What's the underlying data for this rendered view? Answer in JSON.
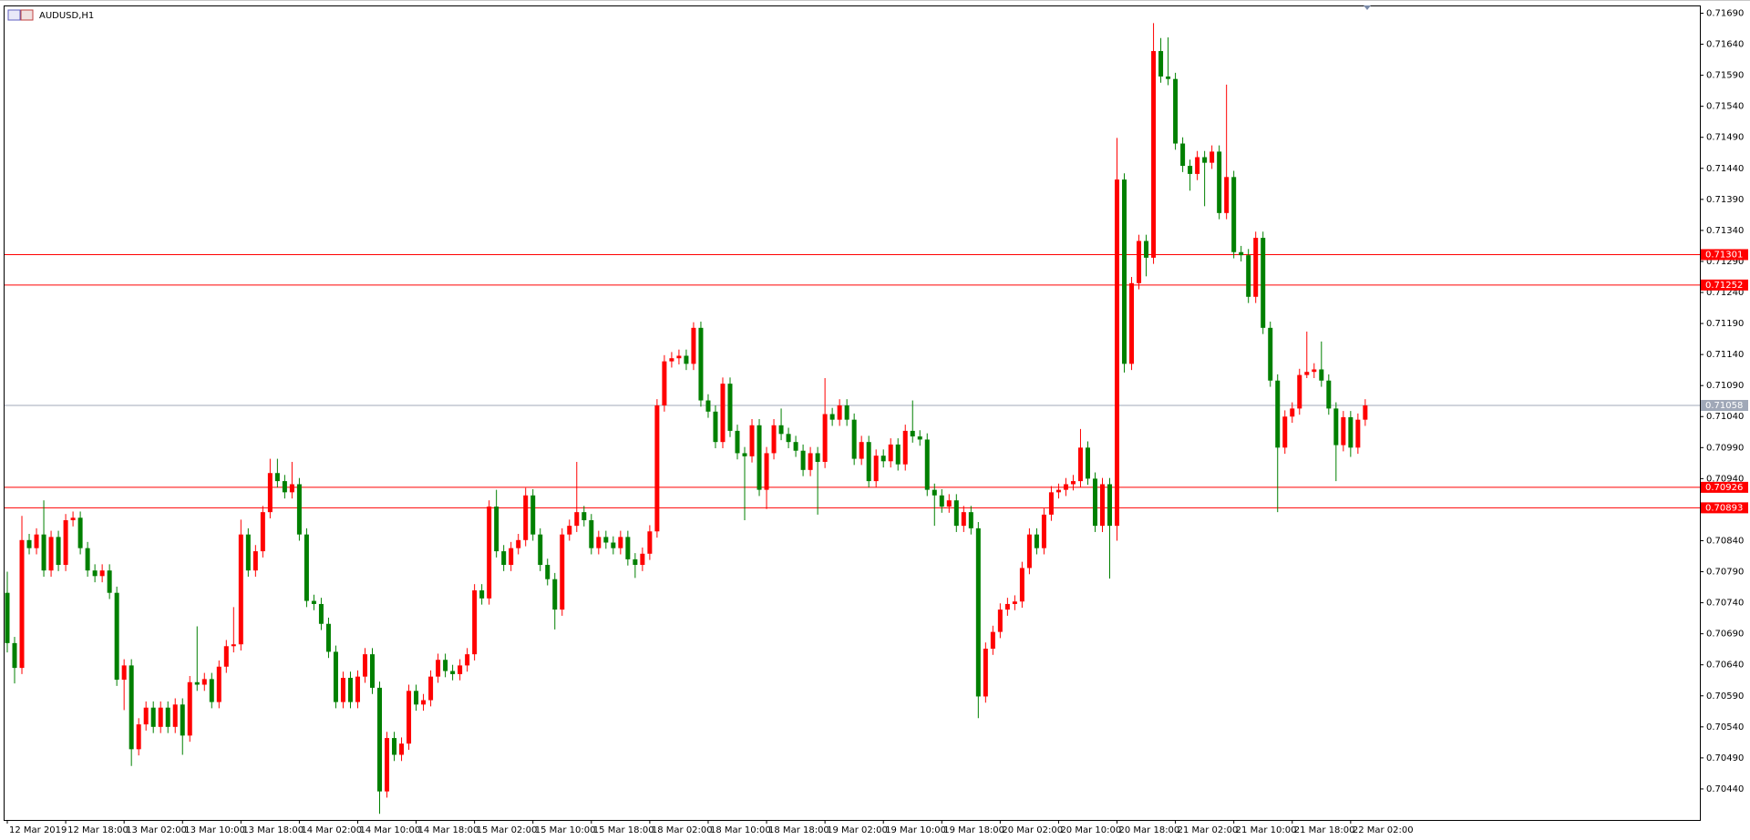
{
  "chart_data": {
    "type": "candlestick",
    "title": "AUDUSD,H1",
    "up_color": "#ff0000",
    "down_color": "#008000",
    "grid": false,
    "ylim": [
      0.7039,
      0.71701
    ],
    "yticks": [
      {
        "value": 0.7044,
        "label": "0.70440"
      },
      {
        "value": 0.7049,
        "label": "0.70490"
      },
      {
        "value": 0.7054,
        "label": "0.70540"
      },
      {
        "value": 0.7059,
        "label": "0.70590"
      },
      {
        "value": 0.7064,
        "label": "0.70640"
      },
      {
        "value": 0.7069,
        "label": "0.70690"
      },
      {
        "value": 0.7074,
        "label": "0.70740"
      },
      {
        "value": 0.7079,
        "label": "0.70790"
      },
      {
        "value": 0.7084,
        "label": "0.70840"
      },
      {
        "value": 0.7089,
        "label": "0.70890"
      },
      {
        "value": 0.7094,
        "label": "0.70940"
      },
      {
        "value": 0.7099,
        "label": "0.70990"
      },
      {
        "value": 0.7104,
        "label": "0.71040"
      },
      {
        "value": 0.7109,
        "label": "0.71090"
      },
      {
        "value": 0.7114,
        "label": "0.71140"
      },
      {
        "value": 0.7119,
        "label": "0.71190"
      },
      {
        "value": 0.7124,
        "label": "0.71240"
      },
      {
        "value": 0.7129,
        "label": "0.71290"
      },
      {
        "value": 0.7134,
        "label": "0.71340"
      },
      {
        "value": 0.7139,
        "label": "0.71390"
      },
      {
        "value": 0.7144,
        "label": "0.71440"
      },
      {
        "value": 0.7149,
        "label": "0.71490"
      },
      {
        "value": 0.7154,
        "label": "0.71540"
      },
      {
        "value": 0.7159,
        "label": "0.71590"
      },
      {
        "value": 0.7164,
        "label": "0.71640"
      },
      {
        "value": 0.7169,
        "label": "0.71690"
      }
    ],
    "hlines": [
      0.71301,
      0.71252,
      0.70926,
      0.70893
    ],
    "hline_color": "#ff0000",
    "current_price": 0.71058,
    "current_price_color": "#a0a8b8",
    "categories": [
      "12 Mar 2019",
      null,
      null,
      null,
      null,
      null,
      null,
      null,
      "12 Mar 18:00",
      null,
      null,
      null,
      null,
      null,
      null,
      null,
      "13 Mar 02:00",
      null,
      null,
      null,
      null,
      null,
      null,
      null,
      "13 Mar 10:00",
      null,
      null,
      null,
      null,
      null,
      null,
      null,
      "13 Mar 18:00",
      null,
      null,
      null,
      null,
      null,
      null,
      null,
      "14 Mar 02:00",
      null,
      null,
      null,
      null,
      null,
      null,
      null,
      "14 Mar 10:00",
      null,
      null,
      null,
      null,
      null,
      null,
      null,
      "14 Mar 18:00",
      null,
      null,
      null,
      null,
      null,
      null,
      null,
      "15 Mar 02:00",
      null,
      null,
      null,
      null,
      null,
      null,
      null,
      "15 Mar 10:00",
      null,
      null,
      null,
      null,
      null,
      null,
      null,
      "15 Mar 18:00",
      null,
      null,
      null,
      null,
      null,
      null,
      null,
      "18 Mar 02:00",
      null,
      null,
      null,
      null,
      null,
      null,
      null,
      "18 Mar 10:00",
      null,
      null,
      null,
      null,
      null,
      null,
      null,
      "18 Mar 18:00",
      null,
      null,
      null,
      null,
      null,
      null,
      null,
      "19 Mar 02:00",
      null,
      null,
      null,
      null,
      null,
      null,
      null,
      "19 Mar 10:00",
      null,
      null,
      null,
      null,
      null,
      null,
      null,
      "19 Mar 18:00",
      null,
      null,
      null,
      null,
      null,
      null,
      null,
      "20 Mar 02:00",
      null,
      null,
      null,
      null,
      null,
      null,
      null,
      "20 Mar 10:00",
      null,
      null,
      null,
      null,
      null,
      null,
      null,
      "20 Mar 18:00",
      null,
      null,
      null,
      null,
      null,
      null,
      null,
      "21 Mar 02:00",
      null,
      null,
      null,
      null,
      null,
      null,
      null,
      "21 Mar 10:00",
      null,
      null,
      null,
      null,
      null,
      null,
      null,
      "21 Mar 18:00",
      null,
      null,
      null,
      null,
      null,
      null,
      null,
      "22 Mar 02:00",
      null,
      null
    ],
    "open": [
      0.70756,
      0.70675,
      0.70635,
      0.70841,
      0.70828,
      0.7085,
      0.70792,
      0.70846,
      0.70801,
      0.70873,
      0.70877,
      0.70828,
      0.70792,
      0.70783,
      0.70792,
      0.70756,
      0.70616,
      0.70639,
      0.70504,
      0.70544,
      0.70571,
      0.7054,
      0.70571,
      0.7054,
      0.70576,
      0.70526,
      0.70612,
      0.70608,
      0.70617,
      0.7058,
      0.70637,
      0.7067,
      0.70673,
      0.7085,
      0.70792,
      0.70823,
      0.70886,
      0.70949,
      0.70936,
      0.70918,
      0.70931,
      0.7085,
      0.70743,
      0.70738,
      0.70706,
      0.70661,
      0.7058,
      0.70619,
      0.7058,
      0.70621,
      0.70657,
      0.70603,
      0.70436,
      0.70522,
      0.70495,
      0.70513,
      0.70598,
      0.70576,
      0.70583,
      0.70621,
      0.70648,
      0.7063,
      0.70625,
      0.70639,
      0.70657,
      0.7076,
      0.70747,
      0.70895,
      0.70823,
      0.70801,
      0.70828,
      0.70841,
      0.70913,
      0.7085,
      0.70801,
      0.70778,
      0.70729,
      0.7085,
      0.70864,
      0.70886,
      0.70873,
      0.70828,
      0.70846,
      0.70837,
      0.70828,
      0.70846,
      0.7081,
      0.70801,
      0.70819,
      0.70855,
      0.71058,
      0.71129,
      0.71134,
      0.71138,
      0.71125,
      0.71183,
      0.71066,
      0.71048,
      0.70999,
      0.71093,
      0.71017,
      0.70981,
      0.70976,
      0.71026,
      0.70922,
      0.70981,
      0.71026,
      0.71012,
      0.70999,
      0.70985,
      0.70954,
      0.70981,
      0.70967,
      0.71044,
      0.71035,
      0.71058,
      0.71035,
      0.70972,
      0.70999,
      0.70936,
      0.70977,
      0.70968,
      0.70995,
      0.70963,
      0.71017,
      0.71008,
      0.71003,
      0.70922,
      0.70913,
      0.70895,
      0.70905,
      0.70864,
      0.70886,
      0.7086,
      0.70589,
      0.70666,
      0.70693,
      0.70729,
      0.70738,
      0.70742,
      0.70796,
      0.7085,
      0.70828,
      0.70882,
      0.70918,
      0.70922,
      0.70931,
      0.70936,
      0.7099,
      0.7094,
      0.70864,
      0.70931,
      0.70864,
      0.71422,
      0.71125,
      0.71255,
      0.71323,
      0.71296,
      0.71629,
      0.71588,
      0.71584,
      0.7148,
      0.71444,
      0.71431,
      0.71458,
      0.71449,
      0.71467,
      0.71368,
      0.71426,
      0.71305,
      0.713,
      0.71233,
      0.71328,
      0.71183,
      0.71098,
      0.7099,
      0.7104,
      0.71053,
      0.71107,
      0.71112,
      0.71116,
      0.71098,
      0.71053,
      0.70994,
      0.71039,
      0.7099,
      0.71035
    ],
    "close": [
      0.70675,
      0.70635,
      0.70841,
      0.70828,
      0.7085,
      0.70792,
      0.70846,
      0.70801,
      0.70873,
      0.70877,
      0.70828,
      0.70792,
      0.70783,
      0.70792,
      0.70756,
      0.70616,
      0.70639,
      0.70504,
      0.70544,
      0.70571,
      0.7054,
      0.70571,
      0.7054,
      0.70576,
      0.70526,
      0.70612,
      0.70608,
      0.70617,
      0.7058,
      0.70637,
      0.7067,
      0.70673,
      0.7085,
      0.70792,
      0.70823,
      0.70886,
      0.70949,
      0.70936,
      0.70918,
      0.70931,
      0.7085,
      0.70743,
      0.70738,
      0.70706,
      0.70661,
      0.7058,
      0.70619,
      0.7058,
      0.70621,
      0.70657,
      0.70603,
      0.70436,
      0.70522,
      0.70495,
      0.70513,
      0.70598,
      0.70576,
      0.70583,
      0.70621,
      0.70648,
      0.7063,
      0.70625,
      0.70639,
      0.70657,
      0.7076,
      0.70747,
      0.70895,
      0.70823,
      0.70801,
      0.70828,
      0.70841,
      0.70913,
      0.7085,
      0.70801,
      0.70778,
      0.70729,
      0.7085,
      0.70864,
      0.70886,
      0.70873,
      0.70828,
      0.70846,
      0.70837,
      0.70828,
      0.70846,
      0.7081,
      0.70801,
      0.70819,
      0.70855,
      0.71058,
      0.71129,
      0.71134,
      0.71138,
      0.71125,
      0.71183,
      0.71066,
      0.71048,
      0.70999,
      0.71093,
      0.71017,
      0.70981,
      0.70976,
      0.71026,
      0.70922,
      0.70981,
      0.71026,
      0.71012,
      0.70999,
      0.70985,
      0.70954,
      0.70981,
      0.70967,
      0.71044,
      0.71035,
      0.71058,
      0.71035,
      0.70972,
      0.70999,
      0.70936,
      0.70977,
      0.70968,
      0.70995,
      0.70963,
      0.71017,
      0.71008,
      0.71003,
      0.70922,
      0.70913,
      0.70895,
      0.70905,
      0.70864,
      0.70886,
      0.7086,
      0.70589,
      0.70666,
      0.70693,
      0.70729,
      0.70738,
      0.70742,
      0.70796,
      0.7085,
      0.70828,
      0.70882,
      0.70918,
      0.70922,
      0.70931,
      0.70936,
      0.7099,
      0.7094,
      0.70864,
      0.70931,
      0.70864,
      0.71422,
      0.71125,
      0.71255,
      0.71323,
      0.71296,
      0.71629,
      0.71588,
      0.71584,
      0.7148,
      0.71444,
      0.71431,
      0.71458,
      0.71449,
      0.71467,
      0.71368,
      0.71426,
      0.71305,
      0.713,
      0.71233,
      0.71328,
      0.71183,
      0.71098,
      0.7099,
      0.7104,
      0.71053,
      0.71107,
      0.71112,
      0.71116,
      0.71098,
      0.71053,
      0.70994,
      0.71039,
      0.7099,
      0.71035,
      0.71058
    ],
    "high": [
      0.7079,
      0.70685,
      0.7088,
      0.70851,
      0.7086,
      0.70905,
      0.70856,
      0.70856,
      0.70883,
      0.70887,
      0.70887,
      0.70838,
      0.70802,
      0.70802,
      0.70802,
      0.70766,
      0.70649,
      0.70649,
      0.70554,
      0.70581,
      0.70581,
      0.70581,
      0.70581,
      0.70586,
      0.70586,
      0.70622,
      0.70702,
      0.70627,
      0.70627,
      0.70647,
      0.7068,
      0.70733,
      0.70874,
      0.7086,
      0.70833,
      0.70896,
      0.70972,
      0.70972,
      0.70946,
      0.70967,
      0.70941,
      0.7086,
      0.70753,
      0.70748,
      0.70716,
      0.70671,
      0.70629,
      0.70629,
      0.70631,
      0.70667,
      0.70667,
      0.70613,
      0.70532,
      0.70532,
      0.70523,
      0.70608,
      0.70608,
      0.70593,
      0.70631,
      0.70658,
      0.70658,
      0.7064,
      0.70649,
      0.70667,
      0.7077,
      0.7077,
      0.70905,
      0.70922,
      0.70833,
      0.70838,
      0.70851,
      0.70925,
      0.70923,
      0.7086,
      0.70811,
      0.70788,
      0.7086,
      0.70874,
      0.70967,
      0.70896,
      0.70883,
      0.70856,
      0.70856,
      0.70847,
      0.70856,
      0.70856,
      0.7082,
      0.70829,
      0.70865,
      0.71068,
      0.71139,
      0.71144,
      0.71148,
      0.71148,
      0.71192,
      0.71193,
      0.71076,
      0.71058,
      0.71103,
      0.71103,
      0.71027,
      0.70991,
      0.71036,
      0.71036,
      0.70991,
      0.71036,
      0.71053,
      0.71022,
      0.71009,
      0.70995,
      0.70991,
      0.70991,
      0.71102,
      0.71054,
      0.71068,
      0.71068,
      0.71045,
      0.71009,
      0.71009,
      0.70987,
      0.70987,
      0.71005,
      0.71005,
      0.71027,
      0.71066,
      0.71018,
      0.71013,
      0.70932,
      0.70923,
      0.70915,
      0.70915,
      0.70896,
      0.70896,
      0.7087,
      0.70676,
      0.70703,
      0.70739,
      0.70748,
      0.70752,
      0.70806,
      0.7086,
      0.7086,
      0.70892,
      0.70928,
      0.70932,
      0.70941,
      0.70946,
      0.7102,
      0.71,
      0.7095,
      0.70941,
      0.70941,
      0.71489,
      0.71432,
      0.71265,
      0.71333,
      0.71333,
      0.71674,
      0.7165,
      0.71651,
      0.71594,
      0.7149,
      0.71454,
      0.71468,
      0.71468,
      0.71477,
      0.71477,
      0.71575,
      0.71436,
      0.71315,
      0.7131,
      0.71338,
      0.71338,
      0.71193,
      0.71108,
      0.7105,
      0.71063,
      0.71117,
      0.71177,
      0.71126,
      0.71161,
      0.71108,
      0.71063,
      0.71049,
      0.71049,
      0.71045,
      0.71068
    ],
    "low": [
      0.7066,
      0.7061,
      0.70625,
      0.70818,
      0.70818,
      0.70782,
      0.70782,
      0.70791,
      0.70791,
      0.70863,
      0.70818,
      0.70782,
      0.70773,
      0.70773,
      0.70746,
      0.70606,
      0.70567,
      0.70477,
      0.70494,
      0.70534,
      0.7053,
      0.7053,
      0.7053,
      0.7053,
      0.70495,
      0.70516,
      0.70598,
      0.70598,
      0.7057,
      0.7057,
      0.70627,
      0.7066,
      0.70663,
      0.70782,
      0.70782,
      0.70813,
      0.70876,
      0.70926,
      0.70908,
      0.70908,
      0.7084,
      0.70733,
      0.70728,
      0.70696,
      0.70651,
      0.7057,
      0.7057,
      0.7057,
      0.7057,
      0.70611,
      0.70593,
      0.704,
      0.70426,
      0.70485,
      0.70485,
      0.70503,
      0.70566,
      0.70566,
      0.70573,
      0.70611,
      0.7062,
      0.70615,
      0.70615,
      0.70629,
      0.70647,
      0.70737,
      0.70737,
      0.70813,
      0.70791,
      0.70791,
      0.70818,
      0.70831,
      0.7084,
      0.70791,
      0.70768,
      0.70697,
      0.70719,
      0.7084,
      0.70854,
      0.70863,
      0.70818,
      0.70818,
      0.70827,
      0.70818,
      0.70818,
      0.708,
      0.7078,
      0.70791,
      0.70809,
      0.70845,
      0.71048,
      0.71119,
      0.71124,
      0.71115,
      0.71115,
      0.71056,
      0.71038,
      0.70989,
      0.70989,
      0.71007,
      0.70971,
      0.70873,
      0.70966,
      0.70912,
      0.70891,
      0.70971,
      0.71002,
      0.70989,
      0.70975,
      0.70944,
      0.70944,
      0.70882,
      0.70957,
      0.71025,
      0.71025,
      0.71025,
      0.70962,
      0.70962,
      0.70926,
      0.70926,
      0.70958,
      0.70958,
      0.70953,
      0.70953,
      0.70998,
      0.70993,
      0.70912,
      0.70864,
      0.70885,
      0.70885,
      0.70854,
      0.70854,
      0.7085,
      0.70554,
      0.70579,
      0.70656,
      0.70683,
      0.70719,
      0.70728,
      0.70732,
      0.70786,
      0.70818,
      0.70818,
      0.70872,
      0.70908,
      0.70912,
      0.70921,
      0.70926,
      0.7093,
      0.70854,
      0.70854,
      0.70779,
      0.7084,
      0.71111,
      0.71115,
      0.71245,
      0.71266,
      0.71286,
      0.71578,
      0.71574,
      0.7147,
      0.71434,
      0.71404,
      0.71421,
      0.71379,
      0.71439,
      0.71358,
      0.71358,
      0.71295,
      0.7129,
      0.71223,
      0.71223,
      0.71173,
      0.71088,
      0.70886,
      0.7098,
      0.7103,
      0.71043,
      0.71102,
      0.71102,
      0.71088,
      0.71043,
      0.70936,
      0.70984,
      0.70975,
      0.7098,
      0.71025
    ]
  }
}
